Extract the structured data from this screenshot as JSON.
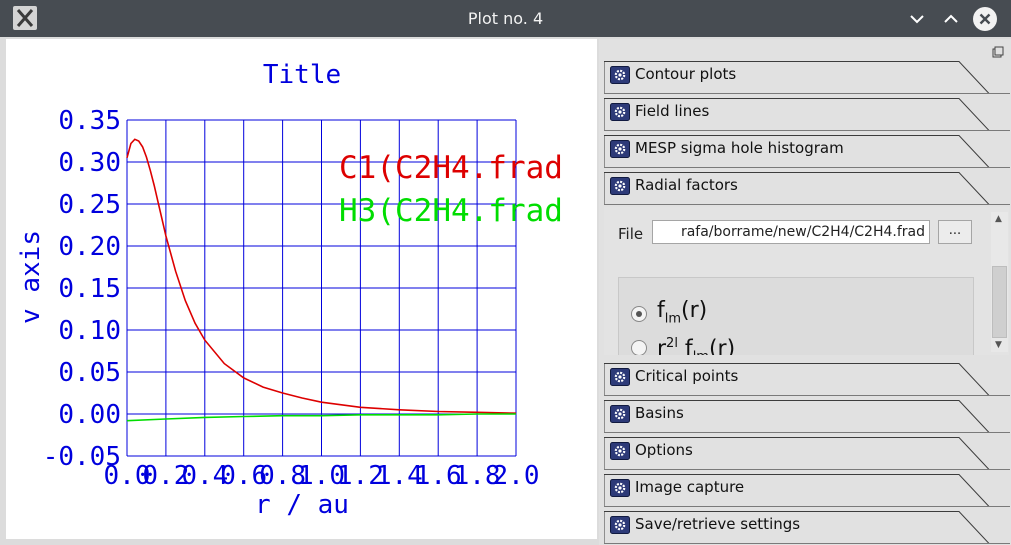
{
  "window": {
    "title": "Plot no. 4"
  },
  "colors": {
    "accent": "#0000dd",
    "series1": "#dd0000",
    "series2": "#00dd00"
  },
  "sections": [
    {
      "label": "Contour plots"
    },
    {
      "label": "Field lines"
    },
    {
      "label": "MESP sigma hole histogram"
    },
    {
      "label": "Radial factors"
    },
    {
      "label": "Critical points"
    },
    {
      "label": "Basins"
    },
    {
      "label": "Options"
    },
    {
      "label": "Image capture"
    },
    {
      "label": "Save/retrieve settings"
    }
  ],
  "radial_factors": {
    "file_label": "File",
    "file_value": "rafa/borrame/new/C2H4/C2H4.frad",
    "browse_label": "...",
    "options": [
      {
        "base": "f",
        "sub": "lm",
        "suffix": "(r)",
        "selected": true
      },
      {
        "base": "r",
        "sup": "2l",
        "mid": " f",
        "sub": "lm",
        "suffix": "(r)",
        "selected": false
      }
    ]
  },
  "chart_data": {
    "type": "line",
    "title": "Title",
    "xlabel": "r / au",
    "ylabel": "v axis",
    "xlim": [
      0,
      2.0
    ],
    "ylim": [
      -0.05,
      0.35
    ],
    "xticks": [
      "0.0",
      "0.2",
      "0.4",
      "0.6",
      "0.8",
      "1.0",
      "1.2",
      "1.4",
      "1.6",
      "1.8",
      "2.0"
    ],
    "yticks": [
      "0.35",
      "0.30",
      "0.25",
      "0.20",
      "0.15",
      "0.10",
      "0.05",
      "0.00",
      "-0.05"
    ],
    "grid": true,
    "legend_position": "top-right",
    "series": [
      {
        "name": "C1(C2H4.frad",
        "color": "#dd0000",
        "x": [
          0.0,
          0.02,
          0.04,
          0.06,
          0.08,
          0.1,
          0.12,
          0.14,
          0.16,
          0.18,
          0.2,
          0.25,
          0.3,
          0.35,
          0.4,
          0.5,
          0.6,
          0.7,
          0.8,
          0.9,
          1.0,
          1.2,
          1.4,
          1.6,
          1.8,
          2.0
        ],
        "y": [
          0.305,
          0.322,
          0.327,
          0.325,
          0.318,
          0.306,
          0.29,
          0.272,
          0.252,
          0.232,
          0.212,
          0.17,
          0.135,
          0.108,
          0.088,
          0.06,
          0.043,
          0.032,
          0.025,
          0.019,
          0.014,
          0.008,
          0.005,
          0.003,
          0.002,
          0.001
        ]
      },
      {
        "name": "H3(C2H4.frad",
        "color": "#00dd00",
        "x": [
          0.0,
          0.2,
          0.4,
          0.6,
          0.8,
          1.0,
          1.2,
          1.4,
          1.6,
          1.8,
          2.0
        ],
        "y": [
          -0.008,
          -0.006,
          -0.004,
          -0.003,
          -0.002,
          -0.002,
          -0.001,
          -0.001,
          -0.001,
          0.0,
          0.0
        ]
      }
    ]
  }
}
